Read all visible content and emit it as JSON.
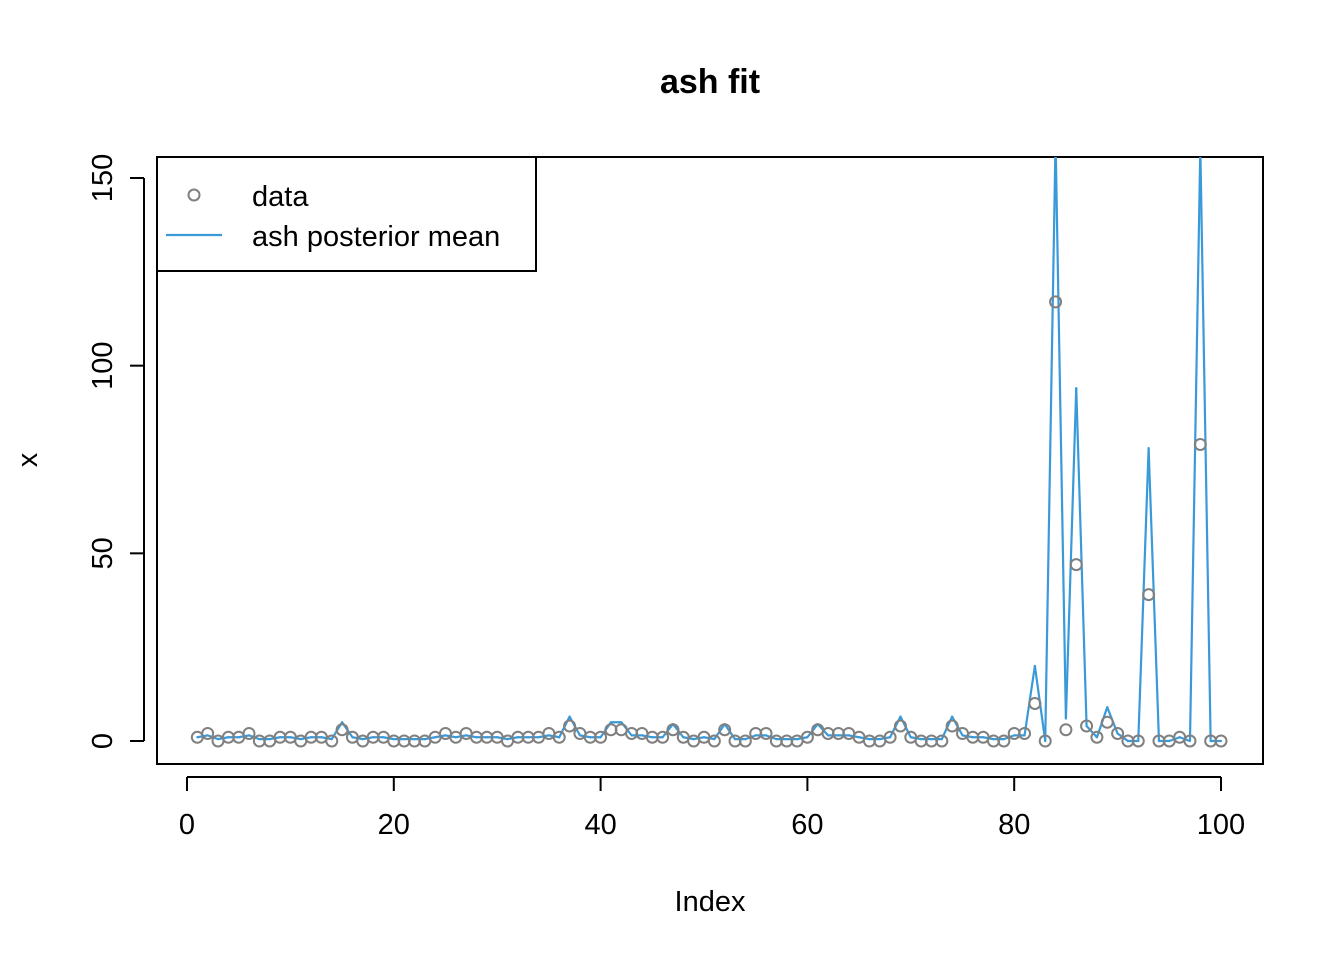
{
  "chart_data": {
    "type": "scatter",
    "title": "ash fit",
    "xlabel": "Index",
    "ylabel": "x",
    "xlim": [
      0,
      100
    ],
    "ylim": [
      0,
      155
    ],
    "x_ticks": [
      0,
      20,
      40,
      60,
      80,
      100
    ],
    "y_ticks": [
      0,
      50,
      100,
      150
    ],
    "legend": {
      "position": "top-left",
      "entries": [
        {
          "label": "data",
          "marker": "open-circle",
          "color": "#808080"
        },
        {
          "label": "ash posterior mean",
          "marker": "line",
          "color": "#3a9ad9"
        }
      ]
    },
    "series": [
      {
        "name": "data",
        "style": "points",
        "color": "#808080",
        "x": [
          1,
          2,
          3,
          4,
          5,
          6,
          7,
          8,
          9,
          10,
          11,
          12,
          13,
          14,
          15,
          16,
          17,
          18,
          19,
          20,
          21,
          22,
          23,
          24,
          25,
          26,
          27,
          28,
          29,
          30,
          31,
          32,
          33,
          34,
          35,
          36,
          37,
          38,
          39,
          40,
          41,
          42,
          43,
          44,
          45,
          46,
          47,
          48,
          49,
          50,
          51,
          52,
          53,
          54,
          55,
          56,
          57,
          58,
          59,
          60,
          61,
          62,
          63,
          64,
          65,
          66,
          67,
          68,
          69,
          70,
          71,
          72,
          73,
          74,
          75,
          76,
          77,
          78,
          79,
          80,
          81,
          82,
          83,
          84,
          85,
          86,
          87,
          88,
          89,
          90,
          91,
          92,
          93,
          94,
          95,
          96,
          97,
          98,
          99,
          100
        ],
        "y": [
          1,
          2,
          0,
          1,
          1,
          2,
          0,
          0,
          1,
          1,
          0,
          1,
          1,
          0,
          3,
          1,
          0,
          1,
          1,
          0,
          0,
          0,
          0,
          1,
          2,
          1,
          2,
          1,
          1,
          1,
          0,
          1,
          1,
          1,
          2,
          1,
          4,
          2,
          1,
          1,
          3,
          3,
          2,
          2,
          1,
          1,
          3,
          1,
          0,
          1,
          0,
          3,
          0,
          0,
          2,
          2,
          0,
          0,
          0,
          1,
          3,
          2,
          2,
          2,
          1,
          0,
          0,
          1,
          4,
          1,
          0,
          0,
          0,
          4,
          2,
          1,
          1,
          0,
          0,
          2,
          2,
          10,
          0,
          117,
          3,
          47,
          4,
          1,
          5,
          2,
          0,
          0,
          39,
          0,
          0,
          1,
          0,
          79,
          0,
          0
        ]
      },
      {
        "name": "ash posterior mean",
        "style": "line",
        "color": "#3a9ad9",
        "x": [
          1,
          2,
          3,
          4,
          5,
          6,
          7,
          8,
          9,
          10,
          11,
          12,
          13,
          14,
          15,
          16,
          17,
          18,
          19,
          20,
          21,
          22,
          23,
          24,
          25,
          26,
          27,
          28,
          29,
          30,
          31,
          32,
          33,
          34,
          35,
          36,
          37,
          38,
          39,
          40,
          41,
          42,
          43,
          44,
          45,
          46,
          47,
          48,
          49,
          50,
          51,
          52,
          53,
          54,
          55,
          56,
          57,
          58,
          59,
          60,
          61,
          62,
          63,
          64,
          65,
          66,
          67,
          68,
          69,
          70,
          71,
          72,
          73,
          74,
          75,
          76,
          77,
          78,
          79,
          80,
          81,
          82,
          83,
          84,
          85,
          86,
          87,
          88,
          89,
          90,
          91,
          92,
          93,
          94,
          95,
          96,
          97,
          98,
          99,
          100
        ],
        "y": [
          1,
          1.5,
          0.5,
          1,
          1,
          1.5,
          0.5,
          0.5,
          1,
          1,
          0.5,
          1,
          1,
          0.5,
          5,
          1,
          0.5,
          1,
          1,
          0.5,
          0.5,
          0.5,
          0.5,
          1,
          1.5,
          1,
          1.5,
          1,
          1,
          1,
          0.5,
          1,
          1,
          1,
          1.5,
          1,
          6.5,
          1.5,
          1,
          1,
          5,
          5,
          1.5,
          1.5,
          1,
          1,
          4.5,
          1,
          0.5,
          1,
          0.5,
          4.5,
          0.5,
          0.5,
          1.5,
          1.5,
          0.5,
          0.5,
          0.5,
          1,
          4.5,
          1.5,
          1.5,
          1.5,
          1,
          0.5,
          0.5,
          1,
          6.5,
          1,
          0.5,
          0.5,
          0.5,
          6.5,
          1.5,
          1,
          1,
          0.5,
          0.5,
          1.5,
          1.5,
          20,
          0,
          160,
          6,
          94,
          4,
          1,
          9,
          2,
          0,
          0,
          78,
          0,
          0,
          1,
          0,
          158,
          0,
          0
        ]
      }
    ]
  }
}
